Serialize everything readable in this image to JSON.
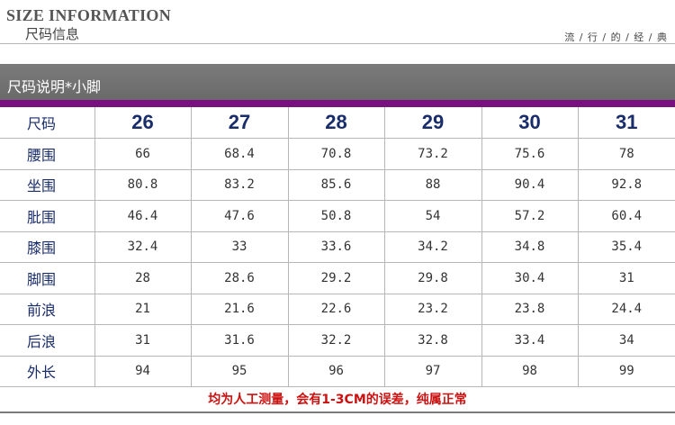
{
  "header": {
    "title_en": "SIZE INFORMATION",
    "title_cn": "尺码信息",
    "tagline": "流 / 行 / 的 / 经 / 典"
  },
  "section": {
    "title": "尺码说明*小脚"
  },
  "table": {
    "header_label": "尺码",
    "sizes": [
      "26",
      "27",
      "28",
      "29",
      "30",
      "31"
    ],
    "rows": [
      {
        "label": "腰围",
        "values": [
          "66",
          "68.4",
          "70.8",
          "73.2",
          "75.6",
          "78"
        ]
      },
      {
        "label": "坐围",
        "values": [
          "80.8",
          "83.2",
          "85.6",
          "88",
          "90.4",
          "92.8"
        ]
      },
      {
        "label": "肶围",
        "values": [
          "46.4",
          "47.6",
          "50.8",
          "54",
          "57.2",
          "60.4"
        ]
      },
      {
        "label": "膝围",
        "values": [
          "32.4",
          "33",
          "33.6",
          "34.2",
          "34.8",
          "35.4"
        ]
      },
      {
        "label": "脚围",
        "values": [
          "28",
          "28.6",
          "29.2",
          "29.8",
          "30.4",
          "31"
        ]
      },
      {
        "label": "前浪",
        "values": [
          "21",
          "21.6",
          "22.6",
          "23.2",
          "23.8",
          "24.4"
        ]
      },
      {
        "label": "后浪",
        "values": [
          "31",
          "31.6",
          "32.2",
          "32.8",
          "33.4",
          "34"
        ]
      },
      {
        "label": "外长",
        "values": [
          "94",
          "95",
          "96",
          "97",
          "98",
          "99"
        ]
      }
    ]
  },
  "note": "均为人工测量，会有1-3CM的误差，纯属正常",
  "colors": {
    "accent_purple": "#7a1080",
    "section_bar_gray": "#737373",
    "label_navy": "#1a2d6b",
    "note_red": "#cc1111",
    "grid_gray": "#b6b6b6"
  }
}
